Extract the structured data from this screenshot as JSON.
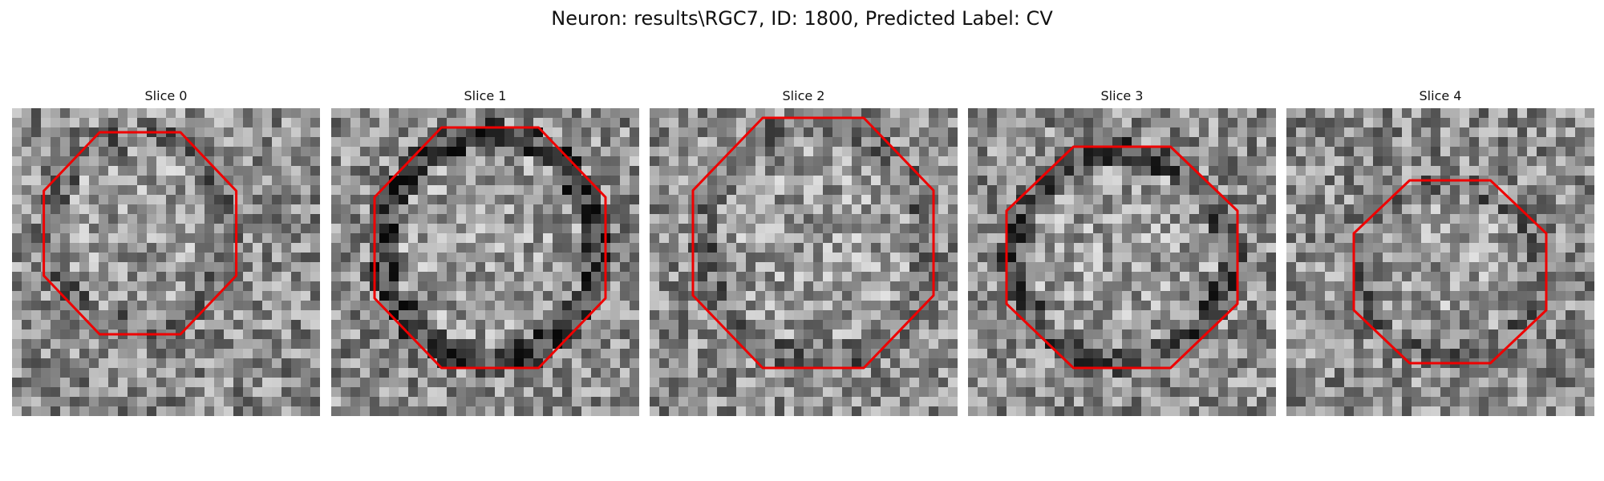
{
  "figure": {
    "suptitle": "Neuron: results\\RGC7, ID: 1800, Predicted Label: CV",
    "colormap": "gray",
    "contour_color": "#ee0000"
  },
  "slices": [
    {
      "label": "Slice 0"
    },
    {
      "label": "Slice 1"
    },
    {
      "label": "Slice 2"
    },
    {
      "label": "Slice 3"
    },
    {
      "label": "Slice 4"
    }
  ]
}
